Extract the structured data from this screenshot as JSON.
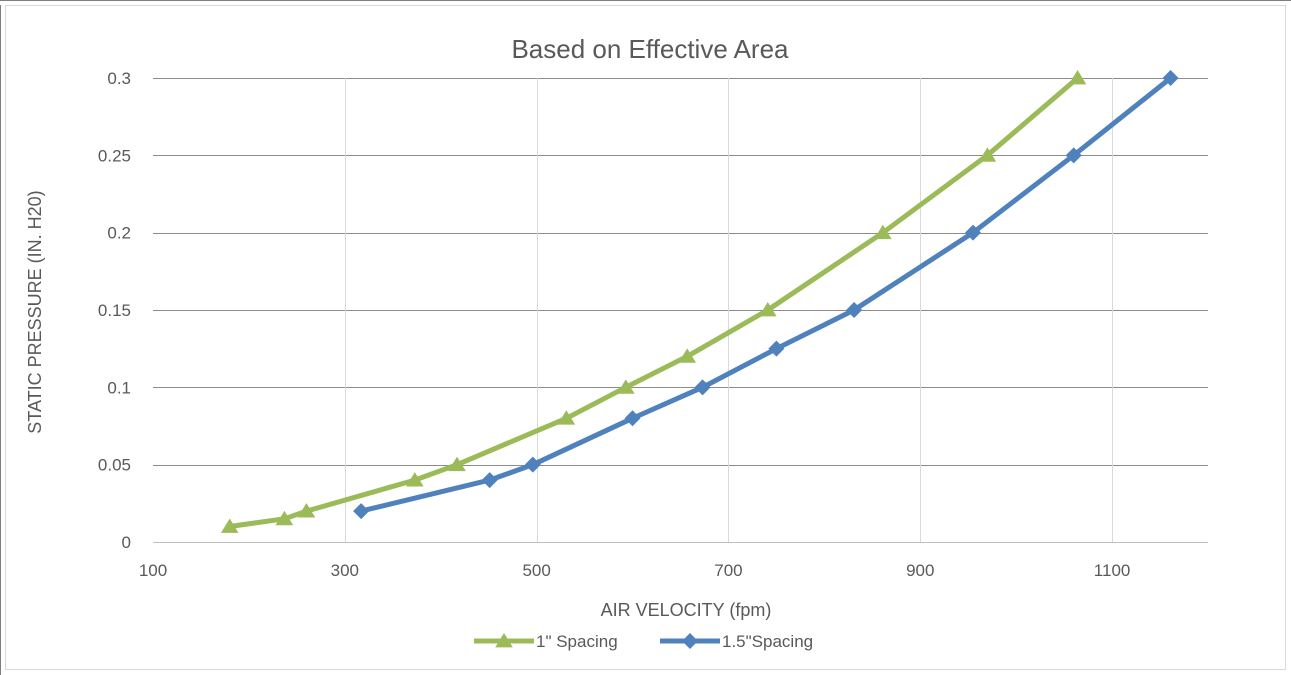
{
  "chart_data": {
    "type": "line",
    "title": "Based on Effective Area",
    "xlabel": "AIR VELOCITY (fpm)",
    "ylabel": "STATIC PRESSURE (IN. H20)",
    "xlim": [
      100,
      1200
    ],
    "ylim": [
      0,
      0.3
    ],
    "x_ticks": [
      100,
      300,
      500,
      700,
      900,
      1100
    ],
    "y_ticks": [
      0,
      0.05,
      0.1,
      0.15,
      0.2,
      0.25,
      0.3
    ],
    "x_tick_labels": [
      "100",
      "300",
      "500",
      "700",
      "900",
      "1100"
    ],
    "y_tick_labels": [
      "0",
      "0.05",
      "0.1",
      "0.15",
      "0.2",
      "0.25",
      "0.3"
    ],
    "grid": true,
    "legend_position": "bottom",
    "series": [
      {
        "name": "1\" Spacing",
        "color": "#9BBB59",
        "marker": "triangle",
        "x": [
          180,
          237,
          260,
          373,
          417,
          531,
          593,
          657,
          741,
          861,
          970,
          1064
        ],
        "y": [
          0.01,
          0.015,
          0.02,
          0.04,
          0.05,
          0.08,
          0.1,
          0.12,
          0.15,
          0.2,
          0.25,
          0.3
        ]
      },
      {
        "name": "1.5\"Spacing",
        "color": "#4F81BD",
        "marker": "diamond",
        "x": [
          317,
          451,
          496,
          600,
          673,
          750,
          831,
          955,
          1060,
          1161
        ],
        "y": [
          0.02,
          0.04,
          0.05,
          0.08,
          0.1,
          0.125,
          0.15,
          0.2,
          0.25,
          0.3
        ]
      }
    ]
  }
}
